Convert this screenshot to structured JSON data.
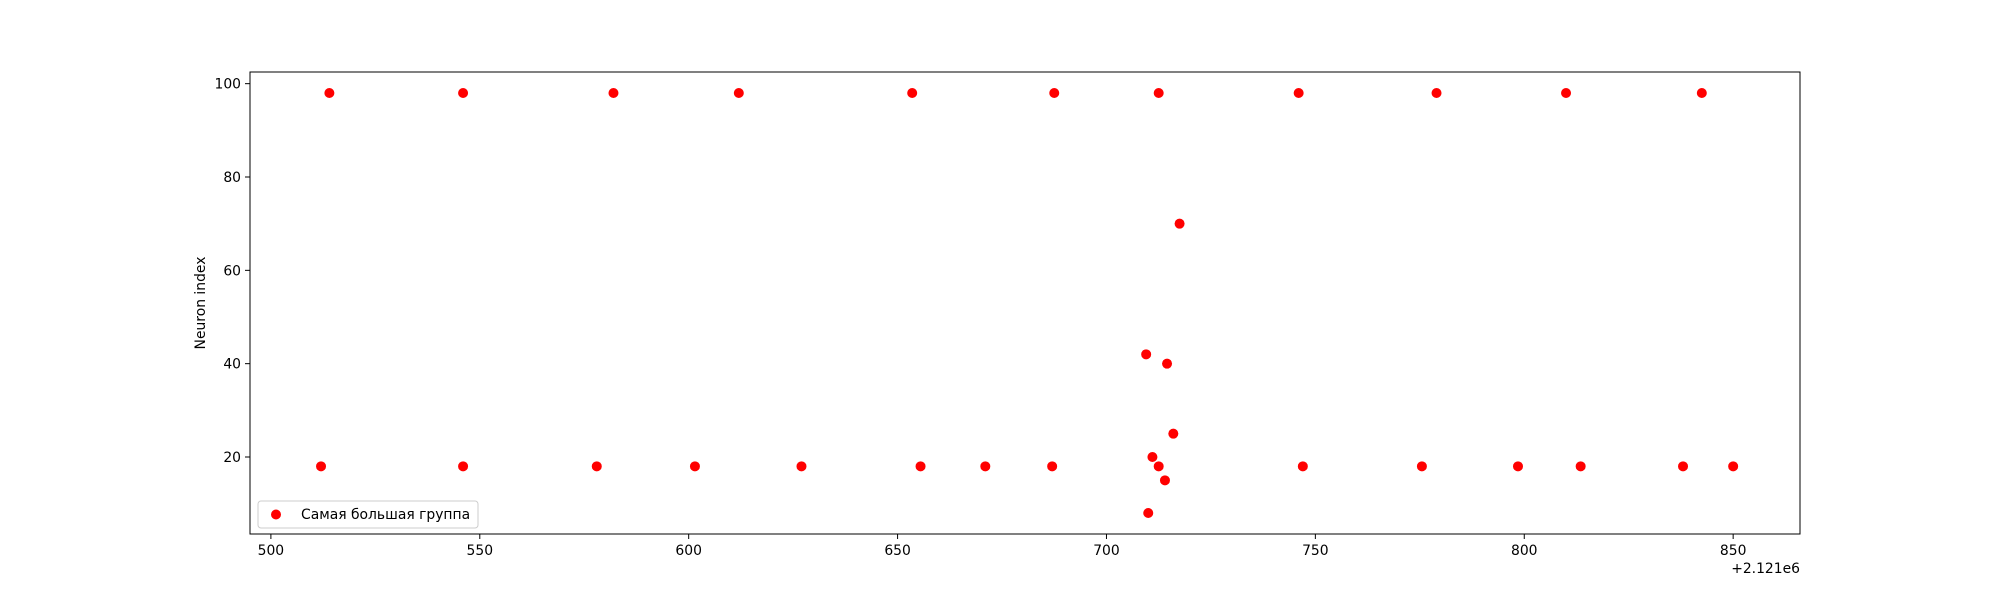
{
  "chart_data": {
    "type": "scatter",
    "title": "",
    "xlabel": "",
    "ylabel": "Neuron index",
    "x_offset_label": "+2.121e6",
    "xlim": [
      495,
      866
    ],
    "ylim": [
      3.5,
      102.5
    ],
    "xticks": [
      500,
      550,
      600,
      650,
      700,
      750,
      800,
      850
    ],
    "yticks": [
      20,
      40,
      60,
      80,
      100
    ],
    "grid": false,
    "legend_position": "lower-left",
    "series": [
      {
        "name": "Самая большая группа",
        "color": "#ff0000",
        "points": [
          {
            "x": 514,
            "y": 98
          },
          {
            "x": 546,
            "y": 98
          },
          {
            "x": 582,
            "y": 98
          },
          {
            "x": 612,
            "y": 98
          },
          {
            "x": 653.5,
            "y": 98
          },
          {
            "x": 687.5,
            "y": 98
          },
          {
            "x": 712.5,
            "y": 98
          },
          {
            "x": 746,
            "y": 98
          },
          {
            "x": 779,
            "y": 98
          },
          {
            "x": 810,
            "y": 98
          },
          {
            "x": 842.5,
            "y": 98
          },
          {
            "x": 717.5,
            "y": 70
          },
          {
            "x": 709.5,
            "y": 42
          },
          {
            "x": 714.5,
            "y": 40
          },
          {
            "x": 716,
            "y": 25
          },
          {
            "x": 711,
            "y": 20
          },
          {
            "x": 512,
            "y": 18
          },
          {
            "x": 546,
            "y": 18
          },
          {
            "x": 578,
            "y": 18
          },
          {
            "x": 601.5,
            "y": 18
          },
          {
            "x": 627,
            "y": 18
          },
          {
            "x": 655.5,
            "y": 18
          },
          {
            "x": 671,
            "y": 18
          },
          {
            "x": 687,
            "y": 18
          },
          {
            "x": 712.5,
            "y": 18
          },
          {
            "x": 747,
            "y": 18
          },
          {
            "x": 775.5,
            "y": 18
          },
          {
            "x": 798.5,
            "y": 18
          },
          {
            "x": 813.5,
            "y": 18
          },
          {
            "x": 838,
            "y": 18
          },
          {
            "x": 850,
            "y": 18
          },
          {
            "x": 714,
            "y": 15
          },
          {
            "x": 710,
            "y": 8
          }
        ]
      }
    ]
  }
}
